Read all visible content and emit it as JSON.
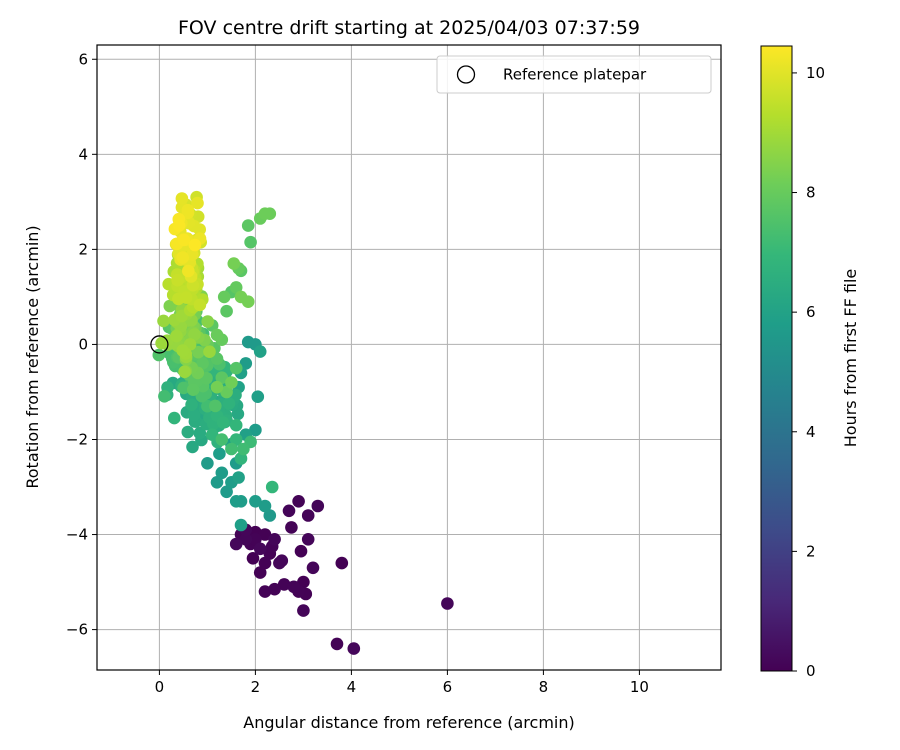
{
  "chart_data": {
    "type": "scatter",
    "title": "FOV centre drift starting at 2025/04/03 07:37:59",
    "xlabel": "Angular distance from reference (arcmin)",
    "ylabel": "Rotation from reference (arcmin)",
    "xlim": [
      -1.3,
      11.7
    ],
    "ylim": [
      -6.85,
      6.3
    ],
    "xticks": [
      0,
      2,
      4,
      6,
      8,
      10
    ],
    "yticks": [
      -6,
      -4,
      -2,
      0,
      2,
      4,
      6
    ],
    "grid": true,
    "legend": {
      "position": "top-right",
      "entries": [
        "Reference platepar"
      ]
    },
    "reference_point": {
      "x": 0,
      "y": 0
    },
    "colorbar": {
      "label": "Hours from first FF file",
      "min": 0,
      "max": 10.45,
      "ticks": [
        0,
        2,
        4,
        6,
        8,
        10
      ],
      "colormap": "viridis"
    },
    "clusters": [
      {
        "hours": [
          0.0,
          0.2
        ],
        "seed": 11,
        "points": [
          [
            1.7,
            -4.0
          ],
          [
            1.9,
            -4.2
          ],
          [
            2.0,
            -4.1
          ],
          [
            2.2,
            -4.0
          ],
          [
            1.8,
            -4.1
          ],
          [
            2.1,
            -4.3
          ],
          [
            2.3,
            -4.4
          ],
          [
            2.4,
            -4.1
          ],
          [
            2.2,
            -4.6
          ],
          [
            2.1,
            -4.8
          ],
          [
            2.5,
            -4.6
          ],
          [
            2.2,
            -5.2
          ],
          [
            2.4,
            -5.15
          ],
          [
            2.6,
            -5.05
          ],
          [
            2.8,
            -5.1
          ],
          [
            2.7,
            -3.5
          ],
          [
            2.9,
            -3.3
          ],
          [
            3.1,
            -3.6
          ],
          [
            3.3,
            -3.4
          ],
          [
            2.75,
            -3.85
          ],
          [
            2.95,
            -4.35
          ],
          [
            3.1,
            -4.1
          ],
          [
            3.2,
            -4.7
          ],
          [
            3.0,
            -5.0
          ],
          [
            2.9,
            -5.2
          ],
          [
            3.05,
            -5.25
          ],
          [
            3.0,
            -5.6
          ],
          [
            3.8,
            -4.6
          ],
          [
            3.7,
            -6.3
          ],
          [
            4.05,
            -6.4
          ],
          [
            6.0,
            -5.45
          ],
          [
            1.8,
            -3.9
          ],
          [
            1.6,
            -4.2
          ],
          [
            2.0,
            -3.95
          ],
          [
            2.35,
            -4.25
          ],
          [
            2.55,
            -4.55
          ],
          [
            1.95,
            -4.5
          ]
        ]
      },
      {
        "hours": [
          5.6,
          6.0
        ],
        "seed": 21,
        "points": [
          [
            1.0,
            -2.5
          ],
          [
            1.2,
            -2.9
          ],
          [
            1.4,
            -3.1
          ],
          [
            1.6,
            -3.3
          ],
          [
            1.7,
            -3.3
          ],
          [
            1.3,
            -2.7
          ],
          [
            1.5,
            -2.9
          ],
          [
            1.65,
            -2.8
          ],
          [
            1.6,
            -2.5
          ],
          [
            1.8,
            -1.9
          ],
          [
            2.0,
            -1.8
          ],
          [
            1.85,
            0.05
          ],
          [
            2.0,
            0.0
          ],
          [
            2.1,
            -0.15
          ],
          [
            1.7,
            -0.6
          ],
          [
            1.8,
            -0.4
          ],
          [
            1.65,
            -0.9
          ],
          [
            2.05,
            -1.1
          ],
          [
            1.7,
            -3.8
          ],
          [
            2.2,
            -3.4
          ],
          [
            2.3,
            -3.6
          ],
          [
            2.0,
            -3.3
          ],
          [
            1.25,
            -2.3
          ],
          [
            1.5,
            -2.1
          ]
        ]
      },
      {
        "hours": [
          6.2,
          6.9
        ],
        "seed": 31,
        "n": 95,
        "x": [
          0.2,
          1.7
        ],
        "y": [
          -2.1,
          0.0
        ]
      },
      {
        "hours": [
          6.7,
          7.3
        ],
        "seed": 41,
        "points": [
          [
            1.1,
            -1.9
          ],
          [
            1.3,
            -2.0
          ],
          [
            1.5,
            -2.2
          ],
          [
            1.7,
            -2.4
          ],
          [
            1.9,
            -2.05
          ],
          [
            1.6,
            -1.7
          ],
          [
            1.4,
            -1.6
          ],
          [
            1.2,
            -1.5
          ],
          [
            2.35,
            -3.0
          ],
          [
            1.0,
            -1.3
          ],
          [
            1.6,
            -2.0
          ],
          [
            1.75,
            -2.2
          ]
        ]
      },
      {
        "hours": [
          7.2,
          7.8
        ],
        "seed": 51,
        "n": 75,
        "x": [
          0.1,
          1.2
        ],
        "y": [
          -1.3,
          1.0
        ]
      },
      {
        "hours": [
          7.6,
          8.3
        ],
        "seed": 61,
        "points": [
          [
            1.3,
            -0.7
          ],
          [
            1.5,
            -0.8
          ],
          [
            1.4,
            -1.0
          ],
          [
            1.2,
            -0.9
          ],
          [
            1.6,
            -0.5
          ],
          [
            1.1,
            0.4
          ],
          [
            1.2,
            0.2
          ],
          [
            1.3,
            0.1
          ],
          [
            1.35,
            1.0
          ],
          [
            1.5,
            1.1
          ],
          [
            1.6,
            1.2
          ],
          [
            1.65,
            1.6
          ],
          [
            1.7,
            1.55
          ],
          [
            1.55,
            1.7
          ],
          [
            1.7,
            1.0
          ],
          [
            1.85,
            0.9
          ],
          [
            1.9,
            2.15
          ],
          [
            1.85,
            2.5
          ],
          [
            2.1,
            2.65
          ],
          [
            2.2,
            2.75
          ],
          [
            2.3,
            2.75
          ],
          [
            0.8,
            -0.6
          ],
          [
            0.9,
            -0.4
          ],
          [
            1.0,
            0.0
          ],
          [
            1.2,
            -0.3
          ],
          [
            1.4,
            0.7
          ]
        ]
      },
      {
        "hours": [
          8.2,
          9.0
        ],
        "seed": 71,
        "n": 65,
        "x": [
          0.05,
          0.95
        ],
        "y": [
          -0.7,
          1.5
        ]
      },
      {
        "hours": [
          9.0,
          9.7
        ],
        "seed": 81,
        "n": 55,
        "x": [
          0.25,
          0.95
        ],
        "y": [
          0.4,
          2.1
        ]
      },
      {
        "hours": [
          9.7,
          10.45
        ],
        "seed": 91,
        "n": 50,
        "x": [
          0.3,
          0.9
        ],
        "y": [
          1.5,
          3.2
        ]
      }
    ]
  }
}
